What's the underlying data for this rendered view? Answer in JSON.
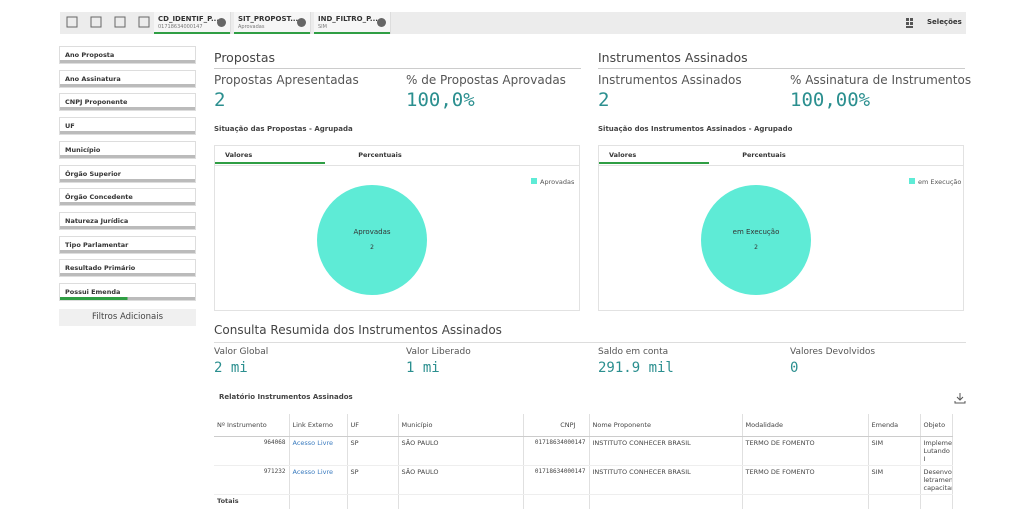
{
  "toolbar": {
    "selections": [
      {
        "field": "CD_IDENTIF_P...",
        "value": "01718634000147"
      },
      {
        "field": "SIT_PROPOST...",
        "value": "Aprovadas"
      },
      {
        "field": "IND_FILTRO_P...",
        "value": "SIM"
      }
    ],
    "selections_button": "Seleções"
  },
  "filters": {
    "items": [
      "Ano Proposta",
      "Ano Assinatura",
      "CNPJ Proponente",
      "UF",
      "Município",
      "Órgão Superior",
      "Órgão Concedente",
      "Natureza Jurídica",
      "Tipo Parlamentar",
      "Resultado Primário",
      "Possui Emenda"
    ],
    "more_button": "Filtros Adicionais"
  },
  "sections": [
    {
      "title": "Propostas",
      "kpis": [
        {
          "label": "Propostas Apresentadas",
          "value": "2"
        },
        {
          "label": "% de Propostas Aprovadas",
          "value": "100,0%"
        }
      ],
      "chart": {
        "title": "Situação das Propostas - Agrupada",
        "tabs": [
          "Valores",
          "Percentuais"
        ],
        "slices": [
          {
            "name": "Aprovadas",
            "value": 2,
            "color": "#5eebd6"
          }
        ]
      }
    },
    {
      "title": "Instrumentos Assinados",
      "kpis": [
        {
          "label": "Instrumentos Assinados",
          "value": "2"
        },
        {
          "label": "% Assinatura de Instrumentos",
          "value": "100,00%"
        }
      ],
      "chart": {
        "title": "Situação dos Instrumentos Assinados - Agrupado",
        "tabs": [
          "Valores",
          "Percentuais"
        ],
        "slices": [
          {
            "name": "em Execução",
            "value": 2,
            "color": "#5eebd6"
          }
        ]
      }
    }
  ],
  "summary": {
    "title": "Consulta Resumida dos Instrumentos Assinados",
    "kpis": [
      {
        "label": "Valor Global",
        "value": "2 mi"
      },
      {
        "label": "Valor Liberado",
        "value": "1 mi"
      },
      {
        "label": "Saldo em conta",
        "value": "291.9 mil"
      },
      {
        "label": "Valores Devolvidos",
        "value": "0"
      }
    ]
  },
  "table": {
    "title": "Relatório Instrumentos Assinados",
    "columns": [
      "Nº Instrumento",
      "Link Externo",
      "UF",
      "Município",
      "CNPJ",
      "Nome Proponente",
      "Modalidade",
      "Emenda",
      "Objeto"
    ],
    "rows": [
      [
        "964068",
        "Acesso Livre",
        "SP",
        "SÃO PAULO",
        "01718634000147",
        "INSTITUTO CONHECER BRASIL",
        "TERMO DE FOMENTO",
        "SIM",
        "Implemen Lutando I"
      ],
      [
        "971232",
        "Acesso Livre",
        "SP",
        "SÃO PAULO",
        "01718634000147",
        "INSTITUTO CONHECER BRASIL",
        "TERMO DE FOMENTO",
        "SIM",
        "Desenvol letramen capacitar"
      ]
    ],
    "footer": "Totais"
  }
}
